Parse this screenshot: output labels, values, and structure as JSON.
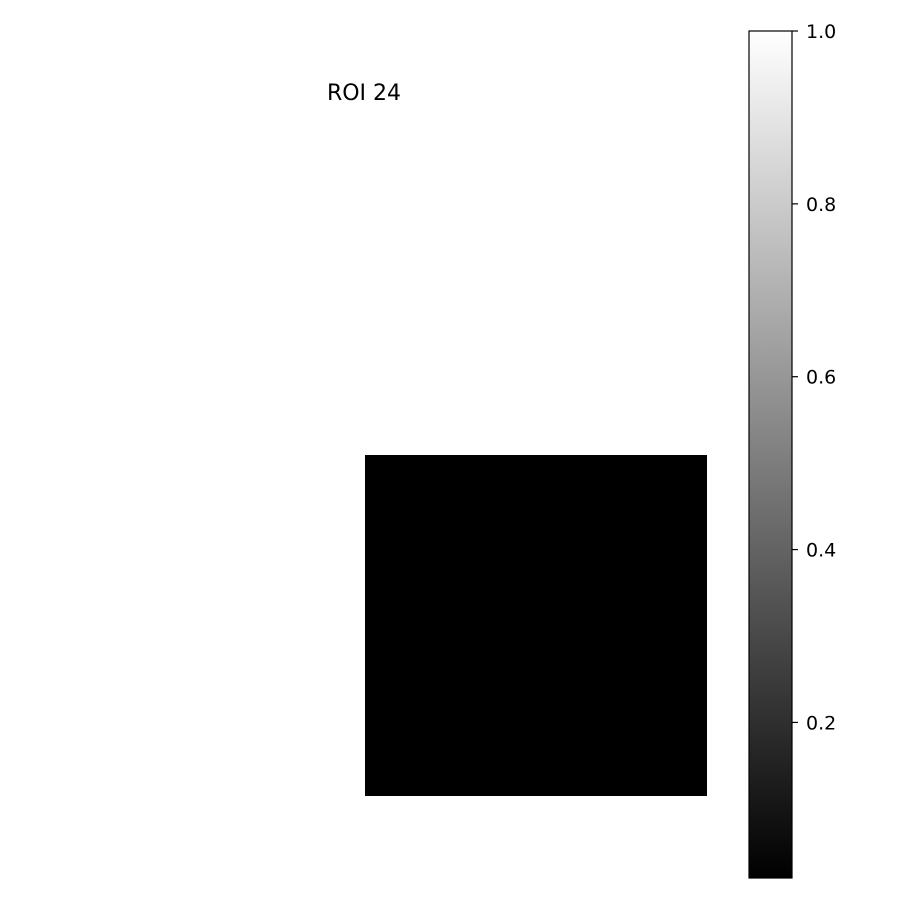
{
  "chart_data": {
    "type": "heatmap",
    "title": "ROI 24",
    "colormap": "gray",
    "image": {
      "rows": 1,
      "cols": 1,
      "x_range": [
        0,
        1
      ],
      "y_range": [
        0,
        1
      ],
      "values": [
        [
          0.0
        ]
      ],
      "background": "#ffffff"
    },
    "colorbar": {
      "range": [
        0.02,
        1.0
      ],
      "ticks": [
        0.2,
        0.4,
        0.6,
        0.8,
        1.0
      ],
      "tick_labels": [
        "0.2",
        "0.4",
        "0.6",
        "0.8",
        "1.0"
      ],
      "color_low": "#000000",
      "color_high": "#ffffff",
      "placement": "right"
    },
    "axes_visible": false,
    "grid": false
  }
}
